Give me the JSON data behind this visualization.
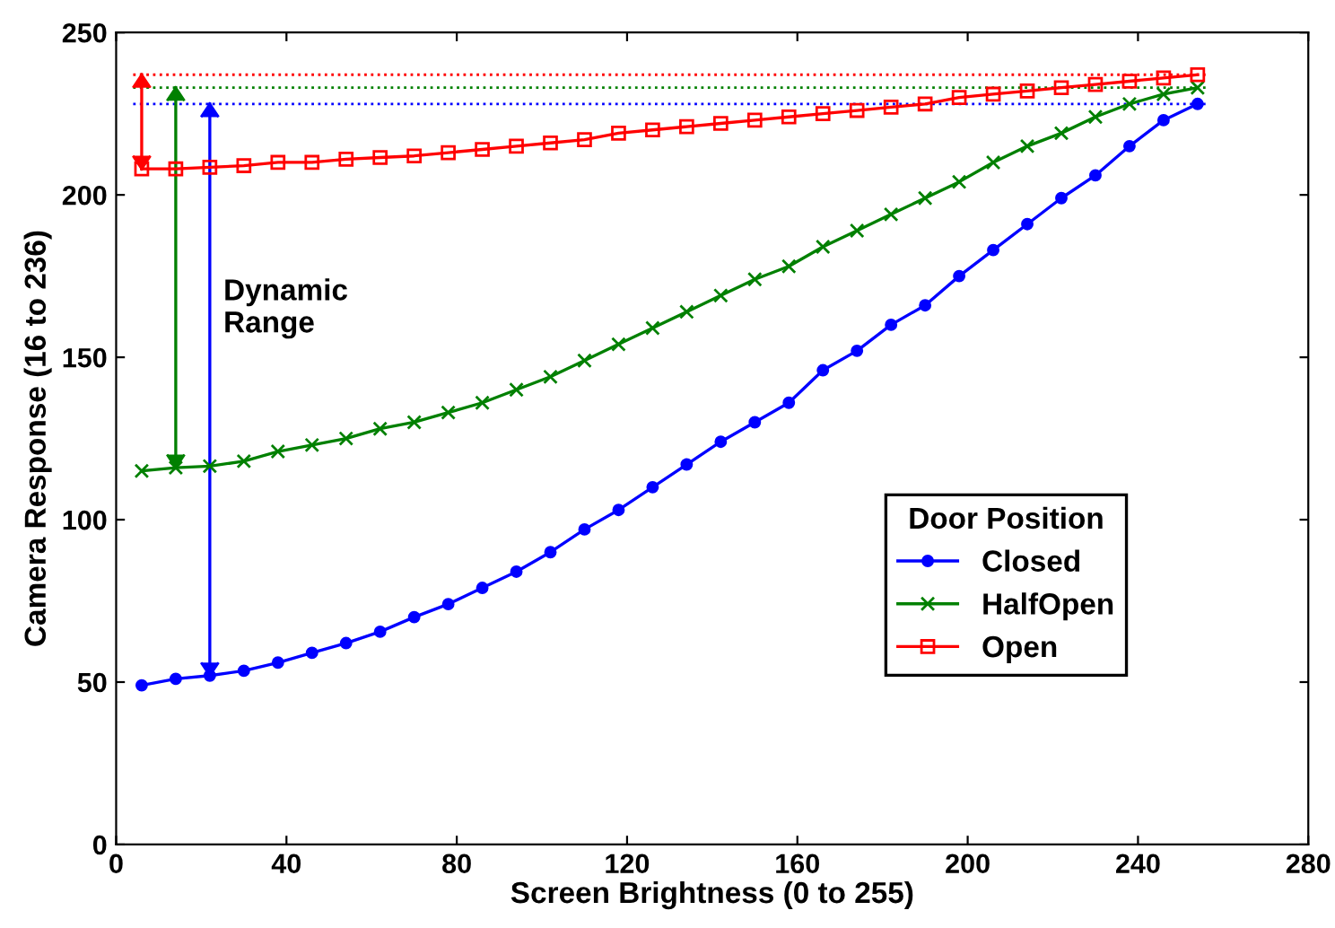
{
  "chart_data": {
    "type": "line",
    "xlabel": "Screen Brightness (0 to 255)",
    "ylabel": "Camera Response (16 to 236)",
    "x": [
      6,
      14,
      22,
      30,
      38,
      46,
      54,
      62,
      70,
      78,
      86,
      94,
      102,
      110,
      118,
      126,
      134,
      142,
      150,
      158,
      166,
      174,
      182,
      190,
      198,
      206,
      214,
      222,
      230,
      238,
      246,
      254
    ],
    "series": [
      {
        "name": "Closed",
        "color": "#0000ff",
        "marker": "circle",
        "values": [
          49,
          51,
          52,
          53.5,
          56,
          59,
          62,
          65.5,
          70,
          74,
          79,
          84,
          90,
          97,
          103,
          110,
          117,
          124,
          130,
          136,
          146,
          152,
          160,
          166,
          175,
          183,
          191,
          199,
          206,
          215,
          223,
          228
        ]
      },
      {
        "name": "HalfOpen",
        "color": "#008000",
        "marker": "cross",
        "values": [
          115,
          116,
          116.5,
          118,
          121,
          123,
          125,
          128,
          130,
          133,
          136,
          140,
          144,
          149,
          154,
          159,
          164,
          169,
          174,
          178,
          184,
          189,
          194,
          199,
          204,
          210,
          215,
          219,
          224,
          228,
          231,
          233
        ]
      },
      {
        "name": "Open",
        "color": "#ff0000",
        "marker": "square",
        "values": [
          208,
          208,
          208.5,
          209,
          210,
          210,
          211,
          211.5,
          212,
          213,
          214,
          215,
          216,
          217,
          219,
          220,
          221,
          222,
          223,
          224,
          225,
          226,
          227,
          228,
          230,
          231,
          232,
          233,
          234,
          235,
          236,
          237
        ]
      }
    ],
    "ref_lines": [
      {
        "axis": "y",
        "value": 228,
        "color": "#0000ff",
        "line_style": "dotted"
      },
      {
        "axis": "y",
        "value": 233,
        "color": "#008000",
        "line_style": "dotted"
      },
      {
        "axis": "y",
        "value": 237,
        "color": "#ff0000",
        "line_style": "dotted"
      }
    ],
    "annotations": [
      "Dynamic\nRange"
    ],
    "legend_title": "Door Position",
    "legend": "bottom right",
    "xlim": [
      0,
      280
    ],
    "xticks": [
      0,
      40,
      80,
      120,
      160,
      200,
      240,
      280
    ],
    "ylim": [
      0,
      250
    ],
    "yticks": [
      0,
      50,
      100,
      150,
      200,
      250
    ],
    "grid": false
  }
}
